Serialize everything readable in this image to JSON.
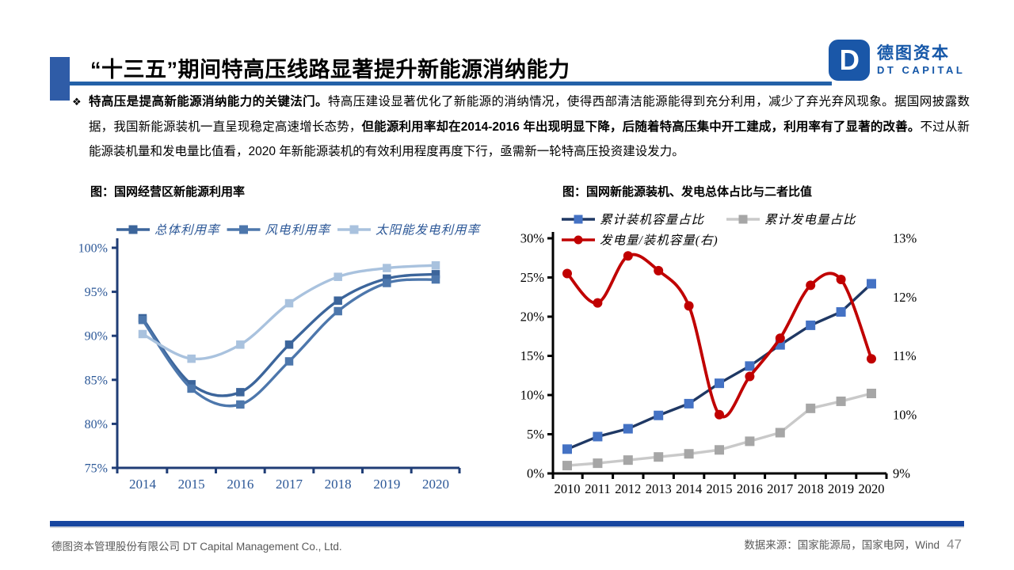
{
  "header": {
    "title": "“十三五”期间特高压线路显著提升新能源消纳能力",
    "accent_color": "#2F5CA7",
    "underline_color": "#2361A8",
    "logo": {
      "mark": "D",
      "zh": "德图资本",
      "en": "DT CAPITAL",
      "brand_color": "#1A57A8"
    }
  },
  "body": {
    "bullet": "❖",
    "segments": [
      {
        "text": "特高压是提高新能源消纳能力的关键法门。",
        "bold": true
      },
      {
        "text": "特高压建设显著优化了新能源的消纳情况，使得西部清洁能源能得到充分利用，减少了弃光弃风现象。据国网披露数据，我国新能源装机一直呈现稳定高速增长态势，",
        "bold": false
      },
      {
        "text": "但能源利用率却在2014-2016 年出现明显下降，后随着特高压集中开工建成，利用率有了显著的改善。",
        "bold": true
      },
      {
        "text": "不过从新能源装机量和发电量比值看，2020 年新能源装机的有效利用程度再度下行，亟需新一轮特高压投资建设发力。",
        "bold": false
      }
    ]
  },
  "chart_data": [
    {
      "type": "line",
      "title": "图：国网经营区新能源利用率",
      "x": [
        2014,
        2015,
        2016,
        2017,
        2018,
        2019,
        2020
      ],
      "series": [
        {
          "name": "总体利用率",
          "color": "#3C659B",
          "marker": "square",
          "smooth": true,
          "values": [
            92.0,
            84.5,
            83.6,
            89.0,
            94.0,
            96.5,
            97.0
          ]
        },
        {
          "name": "风电利用率",
          "color": "#4D77AC",
          "marker": "square",
          "smooth": true,
          "values": [
            91.8,
            84.0,
            82.2,
            87.1,
            92.8,
            96.0,
            96.4
          ]
        },
        {
          "name": "太阳能发电利用率",
          "color": "#A9C2DE",
          "marker": "square",
          "smooth": true,
          "values": [
            90.2,
            87.4,
            89.0,
            93.7,
            96.7,
            97.7,
            98.0
          ]
        }
      ],
      "ylim": [
        75,
        100
      ],
      "ytick_step": 5,
      "ytick_suffix": "%",
      "legend_position": "top",
      "grid": false,
      "axis_line_color": "#1F3D76",
      "axis_label_color": "#2B5797"
    },
    {
      "type": "line",
      "title": "图：国网新能源装机、发电总体占比与二者比值",
      "x": [
        2010,
        2011,
        2012,
        2013,
        2014,
        2015,
        2016,
        2017,
        2018,
        2019,
        2020
      ],
      "series": [
        {
          "name": "累计装机容量占比",
          "axis": "left",
          "line_color": "#1F3864",
          "marker_color": "#4472C4",
          "marker": "square",
          "smooth": false,
          "values": [
            3.1,
            4.7,
            5.7,
            7.4,
            8.9,
            11.5,
            13.7,
            16.4,
            18.9,
            20.6,
            24.2
          ]
        },
        {
          "name": "累计发电量占比",
          "axis": "left",
          "line_color": "#C9C9C9",
          "marker_color": "#A6A6A6",
          "marker": "square",
          "smooth": false,
          "values": [
            1.0,
            1.3,
            1.7,
            2.1,
            2.5,
            3.0,
            4.1,
            5.2,
            8.3,
            9.2,
            10.2
          ]
        },
        {
          "name": "发电量/装机容量(右)",
          "axis": "right",
          "line_color": "#C00000",
          "marker_color": "#C00000",
          "marker": "circle",
          "smooth": true,
          "values": [
            12.4,
            11.9,
            12.7,
            12.45,
            11.85,
            10.0,
            10.65,
            11.3,
            12.2,
            12.3,
            10.95
          ]
        }
      ],
      "ylim_left": [
        0,
        30
      ],
      "ylim_right": [
        9,
        13
      ],
      "ytick_step_left": 5,
      "ytick_step_right": 1,
      "ytick_suffix": "%",
      "legend_position": "top",
      "grid": false,
      "axis_line_color": "#000000",
      "axis_label_color": "#000000"
    }
  ],
  "footer": {
    "bar_color": "#1746A0",
    "company": "德图资本管理股份有限公司  DT Capital Management Co., Ltd.",
    "source": "数据来源：国家能源局，国家电网，Wind",
    "page": "47"
  }
}
